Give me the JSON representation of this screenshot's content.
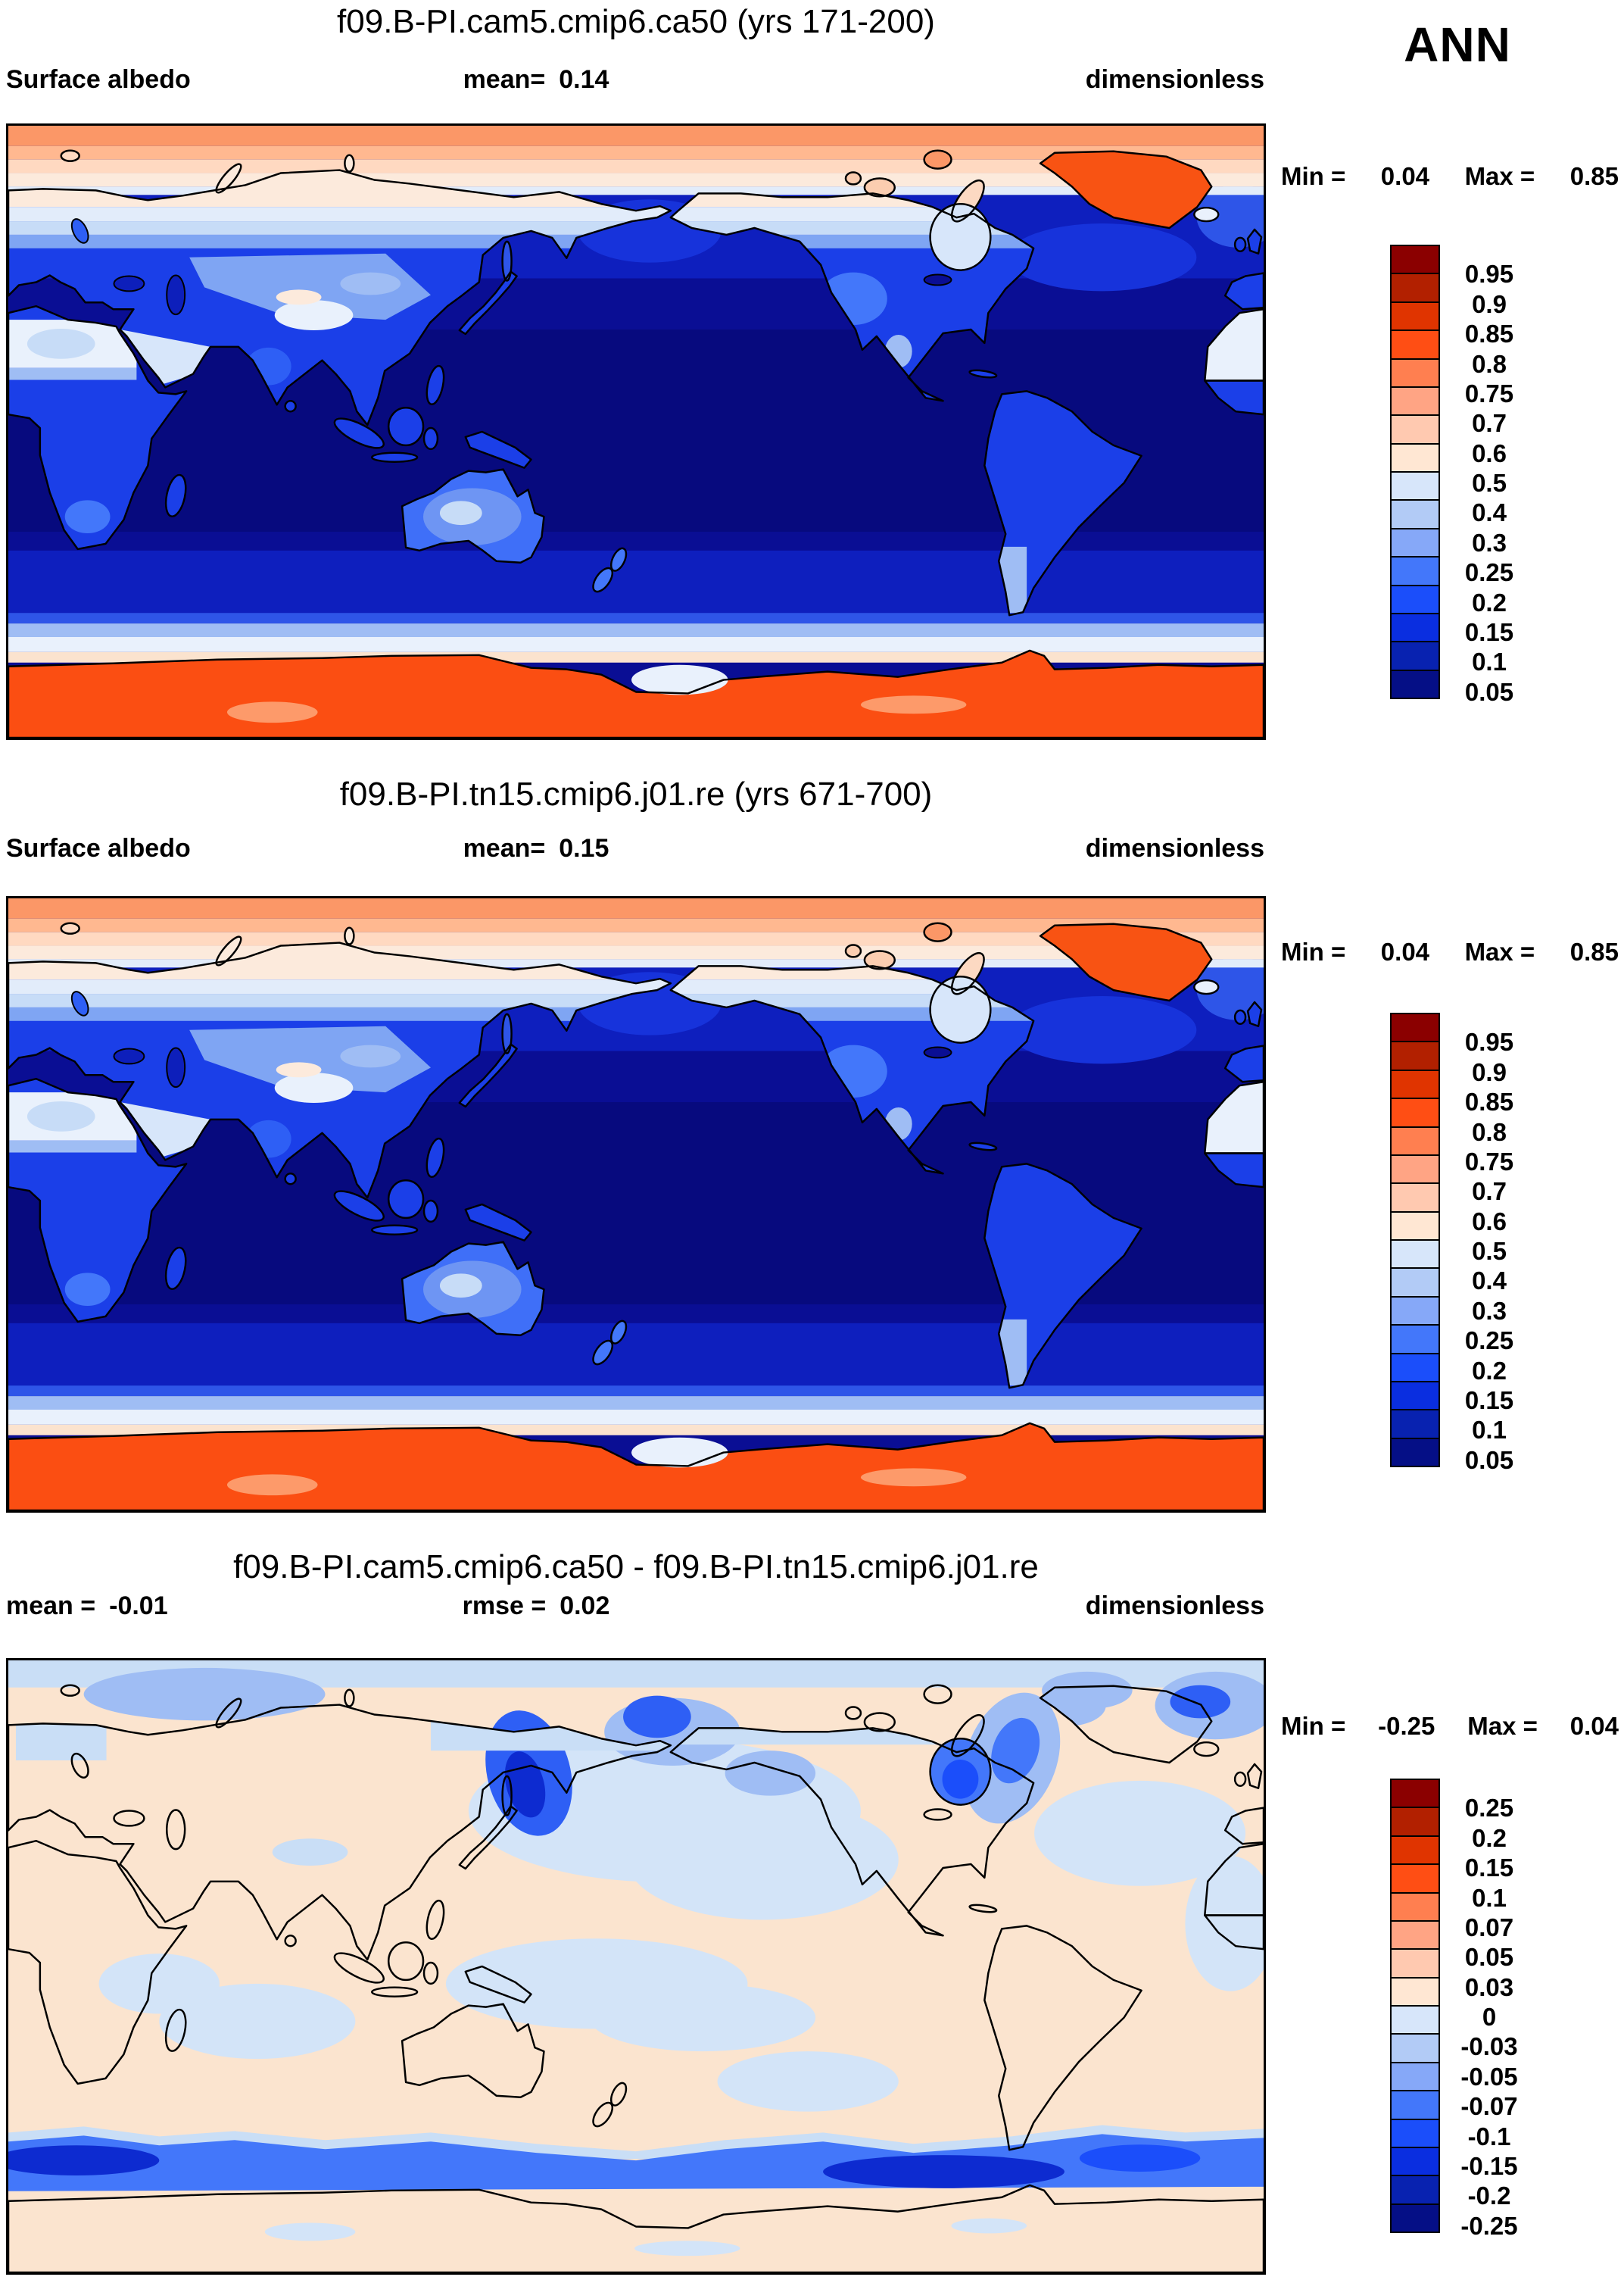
{
  "page": {
    "season": "ANN",
    "background": "#FFFFFF"
  },
  "palette_top_to_bottom": [
    "#8B0000",
    "#B22000",
    "#E03400",
    "#FF4E14",
    "#FF7F50",
    "#FFA484",
    "#FFC9B0",
    "#FFE7D3",
    "#D7E6FA",
    "#B2CBF6",
    "#86A8F8",
    "#4377FA",
    "#1B4EFA",
    "#0A2EE0",
    "#0822B0",
    "#050F86"
  ],
  "panels": [
    {
      "title": "f09.B-PI.cam5.cmip6.ca50 (yrs 171-200)",
      "left_label": "Surface albedo",
      "left_value": "",
      "mid_label": "mean=",
      "mid_value": "0.14",
      "right_label": "dimensionless",
      "min_label": "Min =",
      "min_value": "0.04",
      "max_label": "Max =",
      "max_value": "0.85",
      "ticks": [
        "0.95",
        "0.9",
        "0.85",
        "0.8",
        "0.75",
        "0.7",
        "0.6",
        "0.5",
        "0.4",
        "0.3",
        "0.25",
        "0.2",
        "0.15",
        "0.1",
        "0.05"
      ]
    },
    {
      "title": "f09.B-PI.tn15.cmip6.j01.re (yrs 671-700)",
      "left_label": "Surface albedo",
      "left_value": "",
      "mid_label": "mean=",
      "mid_value": "0.15",
      "right_label": "dimensionless",
      "min_label": "Min =",
      "min_value": "0.04",
      "max_label": "Max =",
      "max_value": "0.85",
      "ticks": [
        "0.95",
        "0.9",
        "0.85",
        "0.8",
        "0.75",
        "0.7",
        "0.6",
        "0.5",
        "0.4",
        "0.3",
        "0.25",
        "0.2",
        "0.15",
        "0.1",
        "0.05"
      ]
    },
    {
      "title": "f09.B-PI.cam5.cmip6.ca50 - f09.B-PI.tn15.cmip6.j01.re",
      "left_label": "mean =",
      "left_value": "-0.01",
      "mid_label": "rmse =",
      "mid_value": "0.02",
      "right_label": "dimensionless",
      "min_label": "Min =",
      "min_value": "-0.25",
      "max_label": "Max =",
      "max_value": "0.04",
      "ticks": [
        "0.25",
        "0.2",
        "0.15",
        "0.1",
        "0.07",
        "0.05",
        "0.03",
        "0",
        "-0.03",
        "-0.05",
        "-0.07",
        "-0.1",
        "-0.15",
        "-0.2",
        "-0.25"
      ]
    }
  ],
  "chart_data": [
    {
      "type": "heatmap",
      "subtype": "global filled-contour map, cylindrical equidistant, longitudes 0-360E, latitudes 90N-90S",
      "season": "ANN",
      "title": "f09.B-PI.cam5.cmip6.ca50 (yrs 171-200)",
      "variable": "Surface albedo",
      "units": "dimensionless",
      "mean": 0.14,
      "min": 0.04,
      "max": 0.85,
      "levels": [
        0.05,
        0.1,
        0.15,
        0.2,
        0.25,
        0.3,
        0.4,
        0.5,
        0.6,
        0.7,
        0.75,
        0.8,
        0.85,
        0.9,
        0.95
      ],
      "legend_position": "right",
      "notable_features": "dark navy oceans (albedo<0.1), blue vegetated land ~0.1-0.2, pale desert belts ~0.3-0.5, pale-peach snowy high-latitude land ~0.5-0.7, orange Arctic sea ice cap, bright orange Greenland and Antarctica ~0.8"
    },
    {
      "type": "heatmap",
      "subtype": "global filled-contour map, cylindrical equidistant, longitudes 0-360E, latitudes 90N-90S",
      "season": "ANN",
      "title": "f09.B-PI.tn15.cmip6.j01.re (yrs 671-700)",
      "variable": "Surface albedo",
      "units": "dimensionless",
      "mean": 0.15,
      "min": 0.04,
      "max": 0.85,
      "levels": [
        0.05,
        0.1,
        0.15,
        0.2,
        0.25,
        0.3,
        0.4,
        0.5,
        0.6,
        0.7,
        0.75,
        0.8,
        0.85,
        0.9,
        0.95
      ],
      "legend_position": "right",
      "notable_features": "same pattern as case 1 with slightly more extensive Arctic/Antarctic sea-ice (more orange at high latitudes)"
    },
    {
      "type": "heatmap",
      "subtype": "difference map (case1 - case2), global, cylindrical equidistant",
      "season": "ANN",
      "title": "f09.B-PI.cam5.cmip6.ca50 - f09.B-PI.tn15.cmip6.j01.re",
      "variable": "Surface albedo difference",
      "units": "dimensionless",
      "mean": -0.01,
      "rmse": 0.02,
      "min": -0.25,
      "max": 0.04,
      "levels": [
        -0.25,
        -0.2,
        -0.15,
        -0.1,
        -0.07,
        -0.05,
        -0.03,
        0,
        0.03,
        0.05,
        0.07,
        0.1,
        0.15,
        0.2,
        0.25
      ],
      "legend_position": "right",
      "notable_features": "mostly near-zero pale peach; negative (blue) bands around the Southern Ocean sea-ice edge, Sea of Okhotsk/Kamchatka, Bering Strait, Hudson Bay, Baffin Bay and Arctic coastal seas"
    }
  ]
}
